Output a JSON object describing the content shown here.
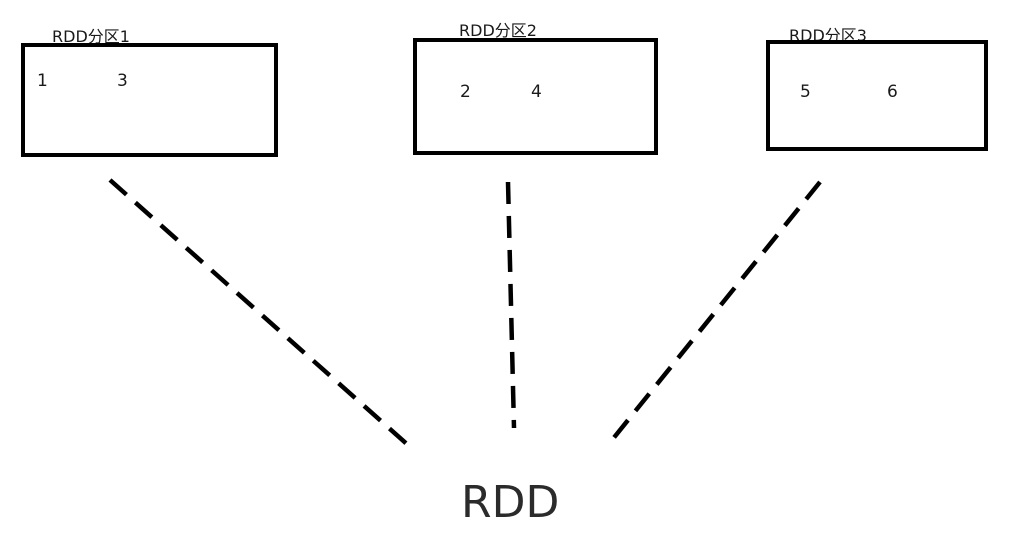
{
  "rdd_label": "RDD",
  "partitions": [
    {
      "label": "RDD分区1",
      "elements": [
        "1",
        "3"
      ]
    },
    {
      "label": "RDD分区2",
      "elements": [
        "2",
        "4"
      ]
    },
    {
      "label": "RDD分区3",
      "elements": [
        "5",
        "6"
      ]
    }
  ],
  "colors": {
    "stroke": "#000000",
    "text": "#1a1a1a",
    "background": "#ffffff"
  }
}
